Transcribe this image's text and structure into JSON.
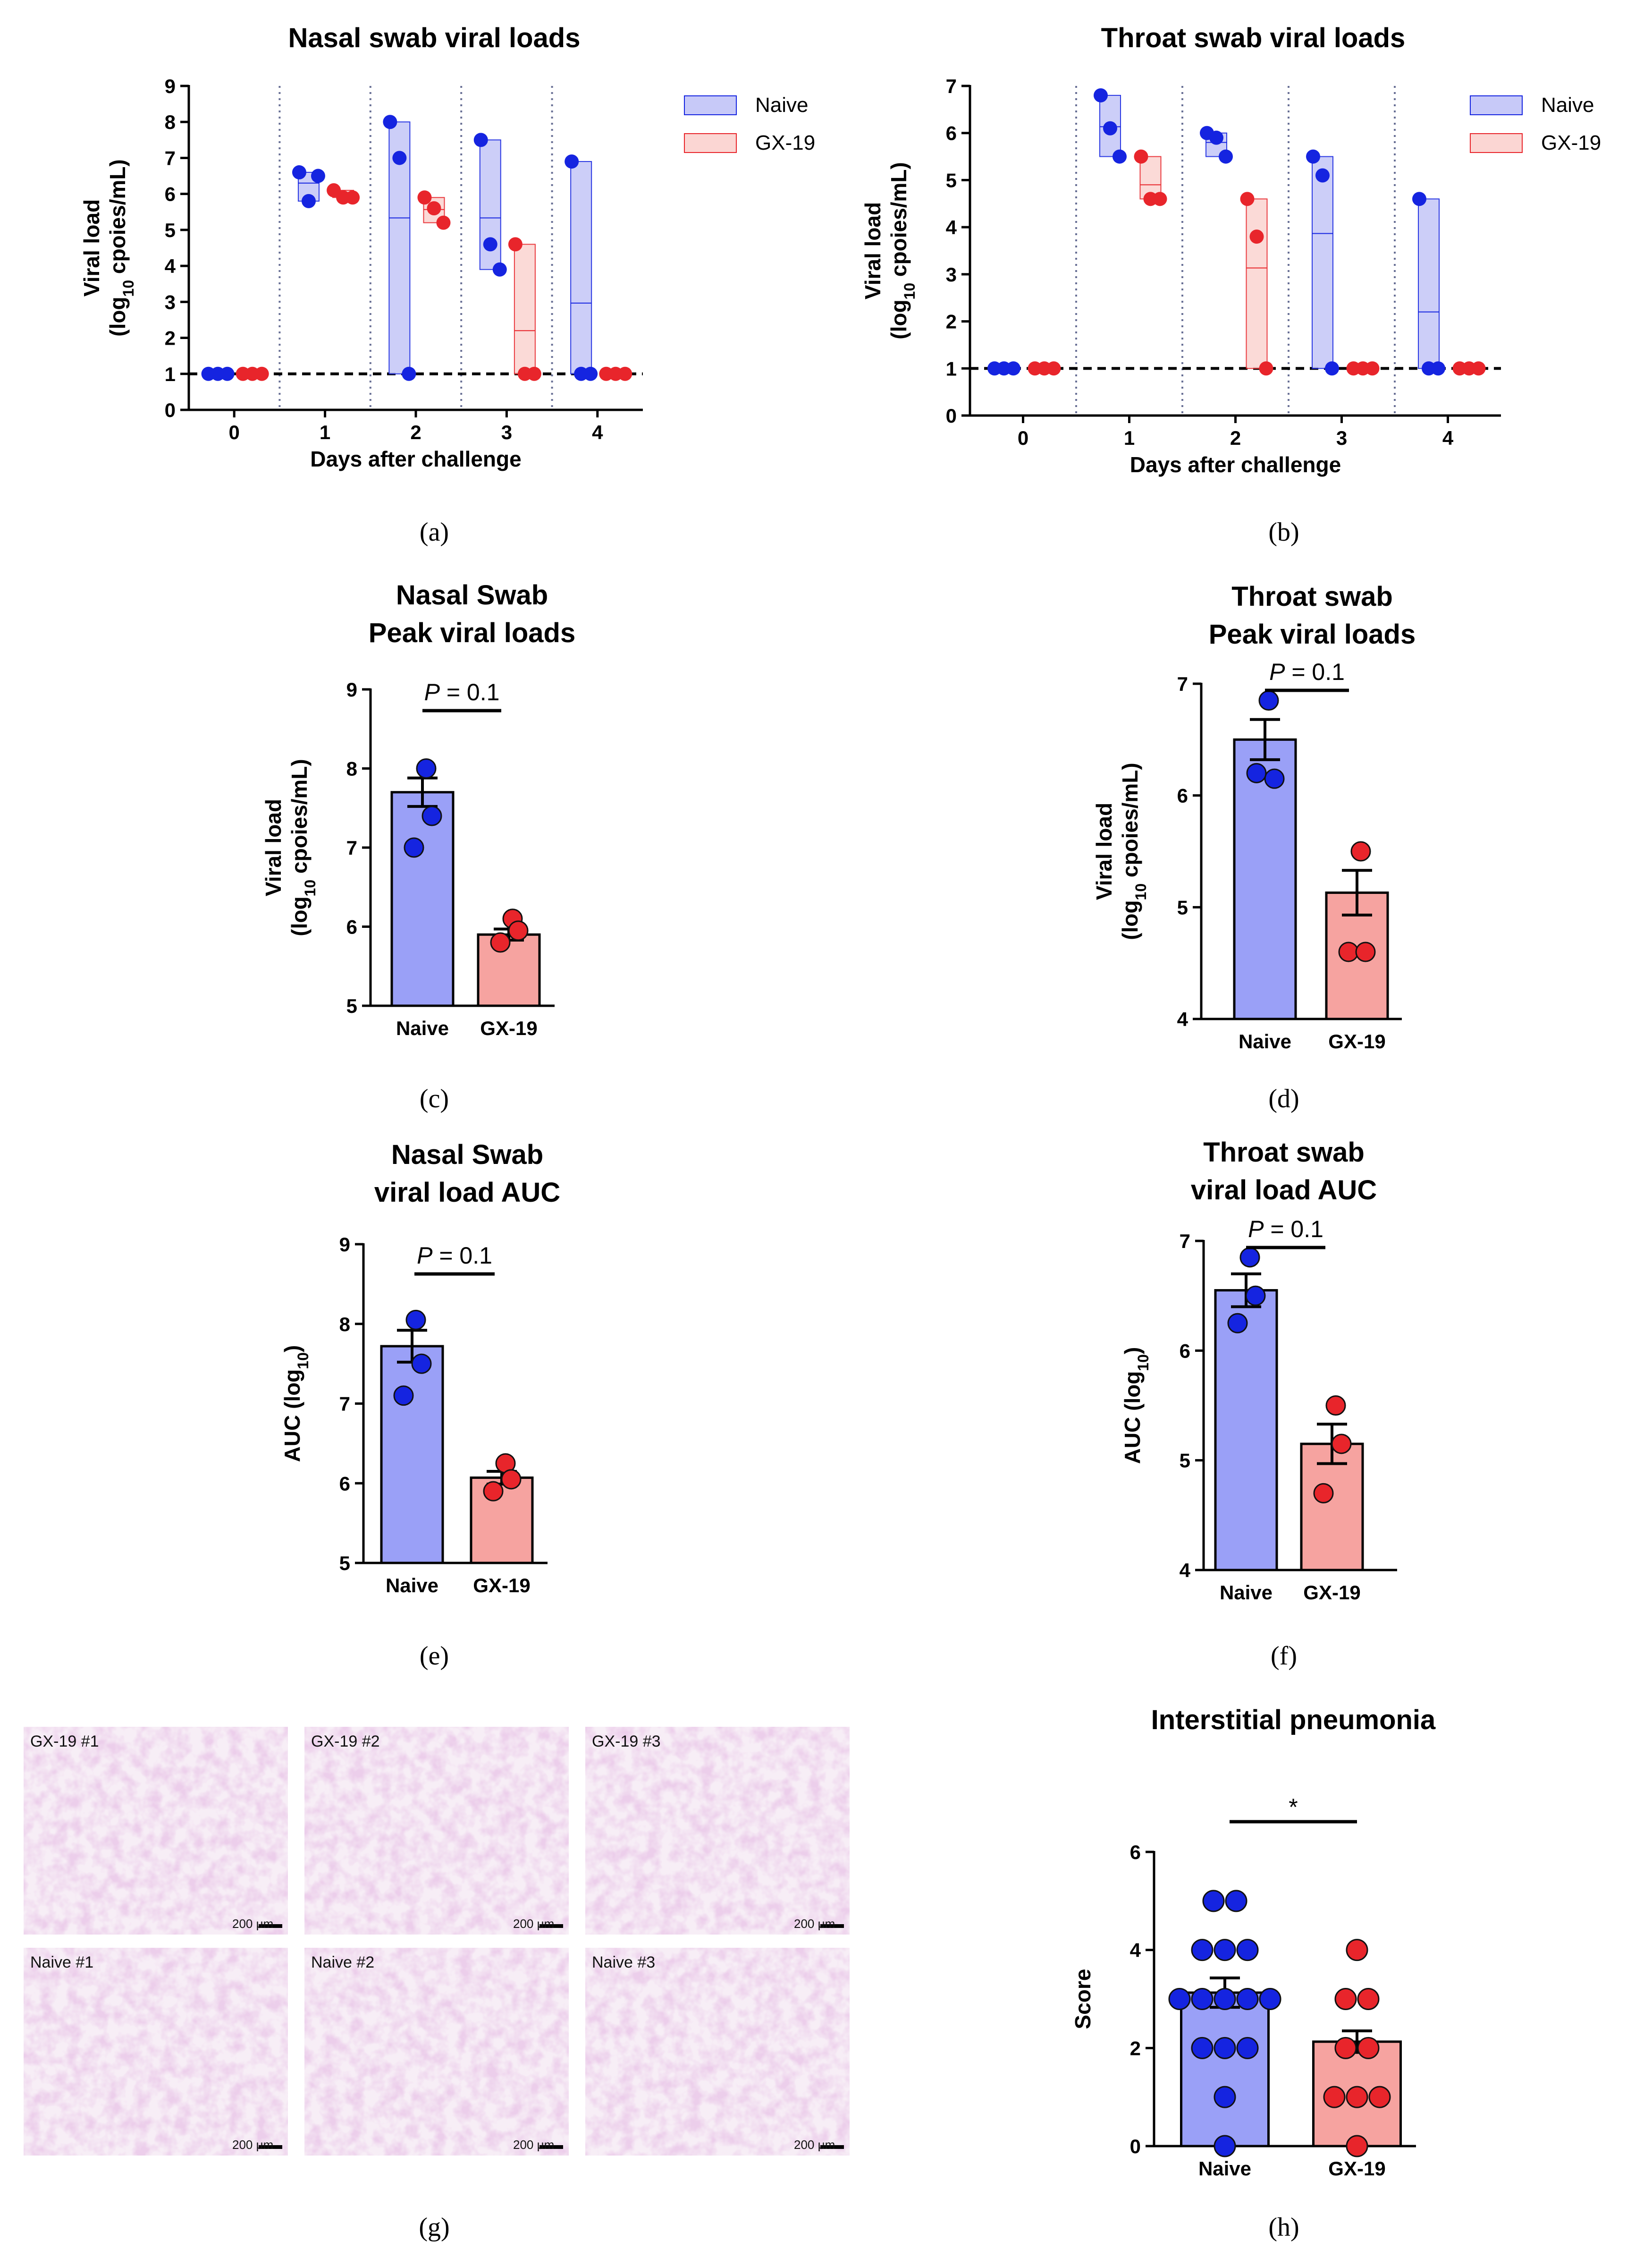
{
  "colors": {
    "naive_fill": "#9aa0f7",
    "naive_fill_light": "#c7c9f8",
    "naive_dot": "#1524e0",
    "gx19_fill": "#f6a3a0",
    "gx19_fill_light": "#fbd6d3",
    "gx19_dot": "#e8252b",
    "tissue": "#dcb0d6"
  },
  "panels": {
    "a": "(a)",
    "b": "(b)",
    "c": "(c)",
    "d": "(d)",
    "e": "(e)",
    "f": "(f)",
    "g": "(g)",
    "h": "(h)"
  },
  "legend": {
    "naive": "Naive",
    "gx19": "GX-19"
  },
  "chart_data": [
    {
      "id": "a",
      "type": "floating-bar-scatter",
      "title": "Nasal swab viral loads",
      "xlabel": "Days after challenge",
      "ylabel_line1": "Viral load",
      "ylabel_line2_pre": "(log",
      "ylabel_line2_sub": "10",
      "ylabel_line2_post": " cpoies/mL)",
      "categories": [
        "0",
        "1",
        "2",
        "3",
        "4"
      ],
      "ylim": [
        0,
        9
      ],
      "yticks": [
        "0",
        "1",
        "2",
        "3",
        "4",
        "5",
        "6",
        "7",
        "8",
        "9"
      ],
      "detection_limit": 1,
      "series": [
        {
          "name": "Naive",
          "points": [
            [
              1,
              1,
              1
            ],
            [
              6.6,
              5.8,
              6.5
            ],
            [
              8,
              7,
              1
            ],
            [
              7.5,
              4.6,
              3.9
            ],
            [
              6.9,
              1,
              1
            ]
          ]
        },
        {
          "name": "GX-19",
          "points": [
            [
              1,
              1,
              1
            ],
            [
              6.1,
              5.9,
              5.9
            ],
            [
              5.9,
              5.6,
              5.2
            ],
            [
              4.6,
              1,
              1
            ],
            [
              1,
              1,
              1
            ]
          ]
        }
      ]
    },
    {
      "id": "b",
      "type": "floating-bar-scatter",
      "title": "Throat swab viral loads",
      "xlabel": "Days after challenge",
      "ylabel_line1": "Viral load",
      "ylabel_line2_pre": "(log",
      "ylabel_line2_sub": "10",
      "ylabel_line2_post": " cpoies/mL)",
      "categories": [
        "0",
        "1",
        "2",
        "3",
        "4"
      ],
      "ylim": [
        0,
        7
      ],
      "yticks": [
        "0",
        "1",
        "2",
        "3",
        "4",
        "5",
        "6",
        "7"
      ],
      "detection_limit": 1,
      "series": [
        {
          "name": "Naive",
          "points": [
            [
              1,
              1,
              1
            ],
            [
              6.8,
              6.1,
              5.5
            ],
            [
              6.0,
              5.9,
              5.5
            ],
            [
              5.5,
              5.1,
              1
            ],
            [
              4.6,
              1,
              1
            ]
          ]
        },
        {
          "name": "GX-19",
          "points": [
            [
              1,
              1,
              1
            ],
            [
              5.5,
              4.6,
              4.6
            ],
            [
              4.6,
              3.8,
              1
            ],
            [
              1,
              1,
              1
            ],
            [
              1,
              1,
              1
            ]
          ]
        }
      ]
    },
    {
      "id": "c",
      "type": "bar-scatter",
      "title_lines": [
        "Nasal Swab",
        "Peak viral loads"
      ],
      "ylabel_line1": "Viral load",
      "ylabel_line2_pre": "(log",
      "ylabel_line2_sub": "10",
      "ylabel_line2_post": " cpoies/mL)",
      "categories": [
        "Naive",
        "GX-19"
      ],
      "values": [
        7.7,
        5.9
      ],
      "sem": [
        0.18,
        0.07
      ],
      "points": [
        [
          8.0,
          7.4,
          7.0
        ],
        [
          6.1,
          5.95,
          5.8
        ]
      ],
      "ylim": [
        5,
        9
      ],
      "yticks": [
        "5",
        "6",
        "7",
        "8",
        "9"
      ],
      "p_prefix": "P",
      "p_suffix": " = 0.1"
    },
    {
      "id": "d",
      "type": "bar-scatter",
      "title_lines": [
        "Throat swab",
        "Peak viral loads"
      ],
      "ylabel_line1": "Viral load",
      "ylabel_line2_pre": "(log",
      "ylabel_line2_sub": "10",
      "ylabel_line2_post": " cpoies/mL)",
      "categories": [
        "Naive",
        "GX-19"
      ],
      "values": [
        6.5,
        5.13
      ],
      "sem": [
        0.18,
        0.2
      ],
      "points": [
        [
          6.85,
          6.15,
          6.2
        ],
        [
          5.5,
          4.6,
          4.6
        ]
      ],
      "ylim": [
        4,
        7
      ],
      "yticks": [
        "4",
        "5",
        "6",
        "7"
      ],
      "p_prefix": "P",
      "p_suffix": " = 0.1"
    },
    {
      "id": "e",
      "type": "bar-scatter",
      "title_lines": [
        "Nasal Swab",
        "viral load AUC"
      ],
      "ylabel_pre": "AUC (log",
      "ylabel_sub": "10",
      "ylabel_post": ")",
      "categories": [
        "Naive",
        "GX-19"
      ],
      "values": [
        7.72,
        6.07
      ],
      "sem": [
        0.2,
        0.08
      ],
      "points": [
        [
          8.05,
          7.5,
          7.1
        ],
        [
          6.25,
          6.05,
          5.9
        ]
      ],
      "ylim": [
        5,
        9
      ],
      "yticks": [
        "5",
        "6",
        "7",
        "8",
        "9"
      ],
      "p_prefix": "P",
      "p_suffix": " = 0.1"
    },
    {
      "id": "f",
      "type": "bar-scatter",
      "title_lines": [
        "Throat swab",
        "viral load AUC"
      ],
      "ylabel_pre": "AUC (log",
      "ylabel_sub": "10",
      "ylabel_post": ")",
      "categories": [
        "Naive",
        "GX-19"
      ],
      "values": [
        6.55,
        5.15
      ],
      "sem": [
        0.15,
        0.18
      ],
      "points": [
        [
          6.85,
          6.5,
          6.25
        ],
        [
          5.5,
          5.15,
          4.7
        ]
      ],
      "ylim": [
        4,
        7
      ],
      "yticks": [
        "4",
        "5",
        "6",
        "7"
      ],
      "p_prefix": "P",
      "p_suffix": " = 0.1"
    },
    {
      "id": "h",
      "type": "bar-scatter",
      "title_lines": [
        "Interstitial pneumonia"
      ],
      "ylabel": "Score",
      "categories": [
        "Naive",
        "GX-19"
      ],
      "values": [
        3.13,
        2.13
      ],
      "sem": [
        0.3,
        0.22
      ],
      "points": [
        [
          5,
          5,
          4,
          4,
          4,
          3,
          3,
          3,
          3,
          3,
          2,
          2,
          2,
          1,
          0
        ],
        [
          4,
          3,
          3,
          2,
          2,
          1,
          1,
          1,
          0
        ]
      ],
      "ylim": [
        0,
        6
      ],
      "yticks": [
        "0",
        "2",
        "4",
        "6"
      ],
      "significance": "*"
    }
  ],
  "micrographs": [
    {
      "label": "GX-19 #1",
      "scale": "200 μm"
    },
    {
      "label": "GX-19 #2",
      "scale": "200 μm"
    },
    {
      "label": "GX-19 #3",
      "scale": "200 μm"
    },
    {
      "label": "Naive #1",
      "scale": "200 μm"
    },
    {
      "label": "Naive #2",
      "scale": "200 μm"
    },
    {
      "label": "Naive #3",
      "scale": "200 μm"
    }
  ]
}
